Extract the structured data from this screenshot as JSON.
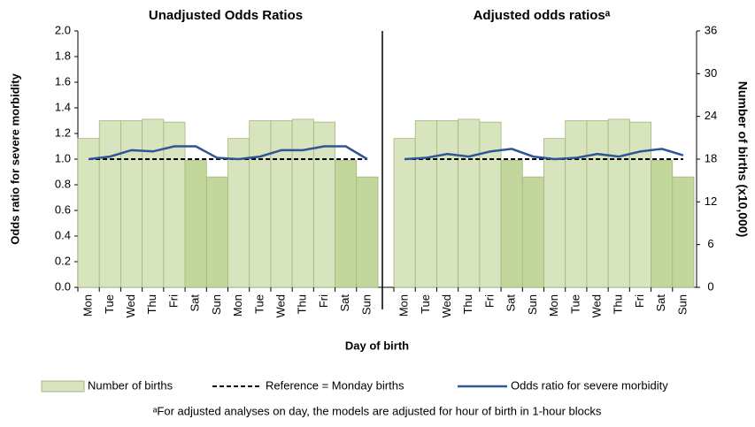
{
  "chart_data": {
    "type": "bar",
    "xlabel": "Day of birth",
    "ylabel": "Odds ratio for severe morbidity",
    "y2label": "Number of births (x10,000)",
    "ylim": [
      0,
      2
    ],
    "yticks": [
      {
        "value": 0,
        "label": "0.0"
      },
      0.2,
      0.4,
      0.6,
      0.8,
      {
        "value": 1,
        "label": "1.0"
      },
      1.2,
      1.4,
      1.6,
      1.8,
      {
        "value": 2,
        "label": "2.0"
      }
    ],
    "y2lim": [
      0,
      36
    ],
    "y2ticks": [
      0,
      6,
      12,
      18,
      24,
      30,
      36
    ],
    "footnote": "ᵃFor adjusted analyses on day, the models are adjusted for hour of birth in 1-hour blocks",
    "panels": [
      {
        "title": "Unadjusted Odds Ratios",
        "categories": [
          "Mon",
          "Tue",
          "Wed",
          "Thu",
          "Fri",
          "Sat",
          "Sun",
          "Mon",
          "Tue",
          "Wed",
          "Thu",
          "Fri",
          "Sat",
          "Sun"
        ],
        "series": [
          {
            "name": "Number of births",
            "type": "bar",
            "axis": "y2",
            "color": "#d7e4bd",
            "colors": [
              "#d7e4bd",
              "#d7e4bd",
              "#d7e4bd",
              "#d7e4bd",
              "#d7e4bd",
              "#c3d69b",
              "#c3d69b",
              "#d7e4bd",
              "#d7e4bd",
              "#d7e4bd",
              "#d7e4bd",
              "#d7e4bd",
              "#c3d69b",
              "#c3d69b"
            ],
            "values": [
              20.9,
              23.4,
              23.4,
              23.6,
              23.2,
              17.8,
              15.5,
              20.9,
              23.4,
              23.4,
              23.6,
              23.2,
              17.8,
              15.5
            ]
          },
          {
            "name": "Reference = Monday births",
            "type": "line",
            "dashed": true,
            "color": "#000000",
            "values": [
              1,
              1,
              1,
              1,
              1,
              1,
              1,
              1,
              1,
              1,
              1,
              1,
              1,
              1
            ]
          },
          {
            "name": "Odds ratio for severe morbidity",
            "type": "line",
            "color": "#2e5597",
            "values": [
              1.0,
              1.02,
              1.07,
              1.06,
              1.1,
              1.1,
              1.01,
              1.0,
              1.02,
              1.07,
              1.07,
              1.1,
              1.1,
              1.0
            ]
          }
        ]
      },
      {
        "title": "Adjusted odds ratiosᵃ",
        "categories": [
          "Mon",
          "Tue",
          "Wed",
          "Thu",
          "Fri",
          "Sat",
          "Sun",
          "Mon",
          "Tue",
          "Wed",
          "Thu",
          "Fri",
          "Sat",
          "Sun"
        ],
        "series": [
          {
            "name": "Number of births",
            "type": "bar",
            "axis": "y2",
            "color": "#d7e4bd",
            "colors": [
              "#d7e4bd",
              "#d7e4bd",
              "#d7e4bd",
              "#d7e4bd",
              "#d7e4bd",
              "#c3d69b",
              "#c3d69b",
              "#d7e4bd",
              "#d7e4bd",
              "#d7e4bd",
              "#d7e4bd",
              "#d7e4bd",
              "#c3d69b",
              "#c3d69b"
            ],
            "values": [
              20.9,
              23.4,
              23.4,
              23.6,
              23.2,
              17.8,
              15.5,
              20.9,
              23.4,
              23.4,
              23.6,
              23.2,
              17.8,
              15.5
            ]
          },
          {
            "name": "Reference = Monday births",
            "type": "line",
            "dashed": true,
            "color": "#000000",
            "values": [
              1,
              1,
              1,
              1,
              1,
              1,
              1,
              1,
              1,
              1,
              1,
              1,
              1,
              1
            ]
          },
          {
            "name": "Odds ratio for severe morbidity",
            "type": "line",
            "color": "#2e5597",
            "values": [
              1.0,
              1.01,
              1.04,
              1.02,
              1.06,
              1.08,
              1.02,
              1.0,
              1.01,
              1.04,
              1.02,
              1.06,
              1.08,
              1.03
            ]
          }
        ]
      }
    ]
  }
}
